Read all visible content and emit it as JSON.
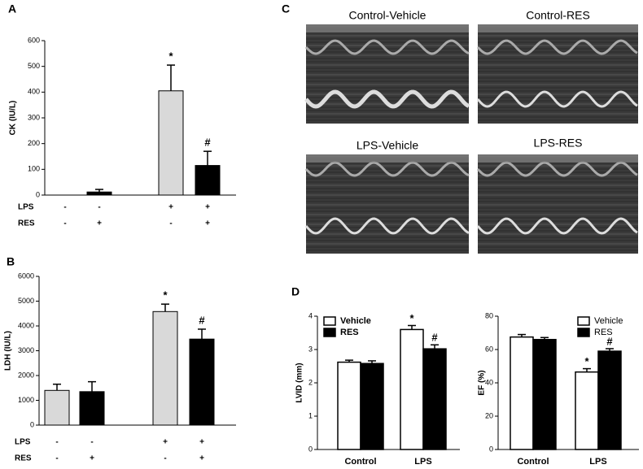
{
  "chart_data": [
    {
      "type": "bar",
      "panel": "A",
      "y_label": "CK (IU/L)",
      "ylim": [
        0,
        600
      ],
      "yticks": [
        0,
        100,
        200,
        300,
        400,
        500,
        600
      ],
      "values": [
        0,
        12,
        405,
        115
      ],
      "errors": [
        0,
        10,
        100,
        55
      ],
      "colors": [
        "#d9d9d9",
        "#000000",
        "#d9d9d9",
        "#000000"
      ],
      "annotations": [
        null,
        null,
        "*",
        "#"
      ],
      "rows": [
        {
          "name": "LPS",
          "marks": [
            "-",
            "-",
            "+",
            "+"
          ]
        },
        {
          "name": "RES",
          "marks": [
            "-",
            "+",
            "-",
            "+"
          ]
        }
      ]
    },
    {
      "type": "bar",
      "panel": "B",
      "y_label": "LDH (IU/L)",
      "ylim": [
        0,
        6000
      ],
      "yticks": [
        0,
        1000,
        2000,
        3000,
        4000,
        5000,
        6000
      ],
      "values": [
        1400,
        1350,
        4580,
        3470
      ],
      "errors": [
        250,
        400,
        300,
        400
      ],
      "colors": [
        "#d9d9d9",
        "#000000",
        "#d9d9d9",
        "#000000"
      ],
      "annotations": [
        null,
        null,
        "*",
        "#"
      ],
      "rows": [
        {
          "name": "LPS",
          "marks": [
            "-",
            "-",
            "+",
            "+"
          ]
        },
        {
          "name": "RES",
          "marks": [
            "-",
            "+",
            "-",
            "+"
          ]
        }
      ]
    },
    {
      "type": "grouped-bar",
      "panel": "D",
      "y_label": "LVID (mm)",
      "ylim": [
        0,
        4
      ],
      "yticks": [
        0,
        1,
        2,
        3,
        4
      ],
      "categories": [
        "Control",
        "LPS"
      ],
      "legend": "upper left",
      "legend_bold": true,
      "series": [
        {
          "name": "Vehicle",
          "color": "#ffffff",
          "values": [
            2.62,
            3.6
          ],
          "errors": [
            0.06,
            0.12
          ],
          "annotations": [
            null,
            "*"
          ]
        },
        {
          "name": "RES",
          "color": "#000000",
          "values": [
            2.58,
            3.02
          ],
          "errors": [
            0.08,
            0.12
          ],
          "annotations": [
            null,
            "#"
          ]
        }
      ]
    },
    {
      "type": "grouped-bar",
      "y_label": "EF (%)",
      "ylim": [
        0,
        80
      ],
      "yticks": [
        0,
        20,
        40,
        60,
        80
      ],
      "categories": [
        "Control",
        "LPS"
      ],
      "legend": "upper right",
      "legend_bold": false,
      "series": [
        {
          "name": "Vehicle",
          "color": "#ffffff",
          "values": [
            67.5,
            46.5
          ],
          "errors": [
            1.5,
            2
          ],
          "annotations": [
            null,
            "*"
          ]
        },
        {
          "name": "RES",
          "color": "#000000",
          "values": [
            66,
            59
          ],
          "errors": [
            1.2,
            1.5
          ],
          "annotations": [
            null,
            "#"
          ]
        }
      ]
    }
  ],
  "images": {
    "panel": "C",
    "titles": [
      "Control-Vehicle",
      "Control-RES",
      "LPS-Vehicle",
      "LPS-RES"
    ]
  }
}
